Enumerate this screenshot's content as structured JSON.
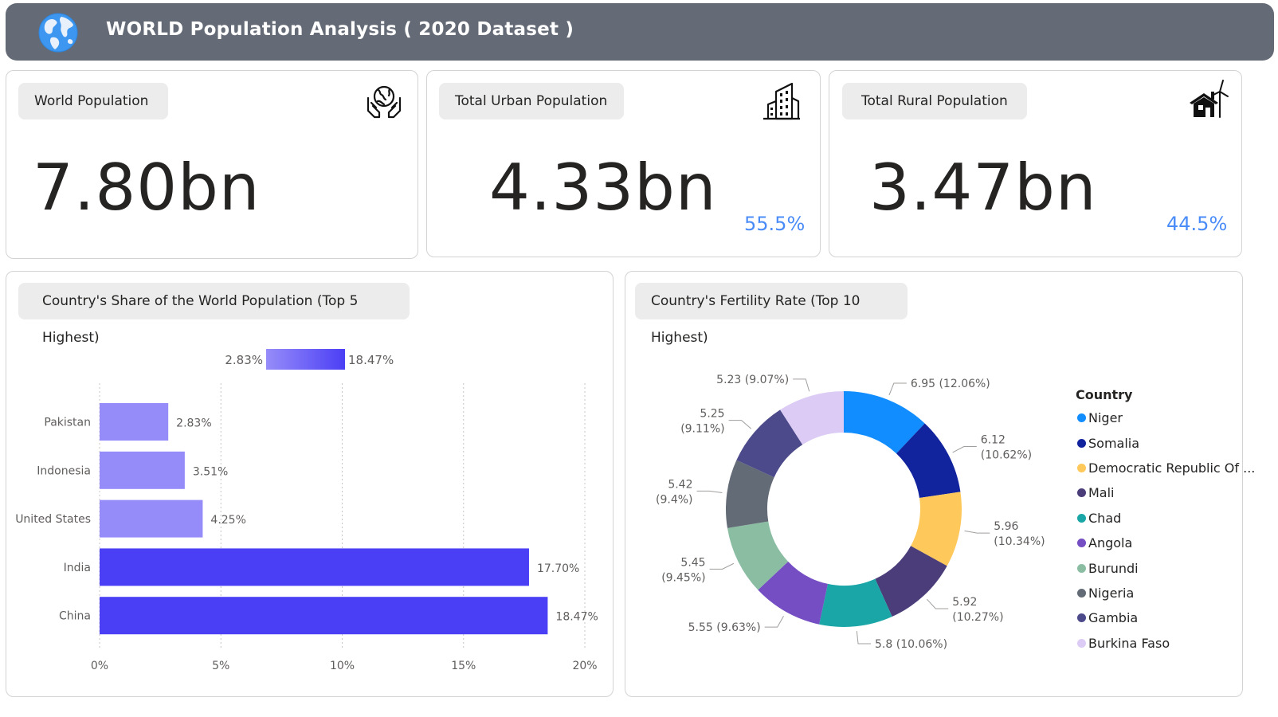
{
  "header": {
    "title": "WORLD Population Analysis ( 2020 Dataset )",
    "icon": "globe-icon"
  },
  "kpis": {
    "world": {
      "label": "World Population",
      "value": "7.80bn",
      "icon": "hands-globe-icon"
    },
    "urban": {
      "label": "Total Urban Population",
      "value": "4.33bn",
      "percent": "55.5%",
      "icon": "city-buildings-icon"
    },
    "rural": {
      "label": "Total Rural Population",
      "value": "3.47bn",
      "percent": "44.5%",
      "icon": "house-windmill-icon"
    }
  },
  "colors": {
    "accent": "#4a8cf7",
    "header_bg": "#656b76",
    "bar_dark": "#4b3ff5",
    "bar_light": "#968cf9"
  },
  "bar_panel": {
    "title": "Country's Share of the World Population (Top 5 Highest)"
  },
  "donut_panel": {
    "title": "Country's Fertility Rate (Top 10 Highest)"
  },
  "chart_data": [
    {
      "type": "bar",
      "orientation": "horizontal",
      "categories": [
        "Pakistan",
        "Indonesia",
        "United States",
        "India",
        "China"
      ],
      "values": [
        2.83,
        3.51,
        4.25,
        17.7,
        18.47
      ],
      "value_labels": [
        "2.83%",
        "3.51%",
        "4.25%",
        "17.70%",
        "18.47%"
      ],
      "xlim": [
        0,
        20
      ],
      "x_ticks": [
        "0%",
        "5%",
        "10%",
        "15%",
        "20%"
      ],
      "color_scale": {
        "min_label": "2.83%",
        "max_label": "18.47%"
      },
      "grid": true
    },
    {
      "type": "pie",
      "variant": "donut",
      "legend_title": "Country",
      "legend_position": "right",
      "slices": [
        {
          "name": "Niger",
          "value": 6.95,
          "label": "6.95 (12.06%)",
          "color": "#118dff"
        },
        {
          "name": "Somalia",
          "value": 6.12,
          "label": "6.12 (10.62%)",
          "color": "#12239e"
        },
        {
          "name": "Democratic Republic Of ...",
          "value": 5.96,
          "label": "5.96 (10.34%)",
          "color": "#ffc85a"
        },
        {
          "name": "Mali",
          "value": 5.92,
          "label": "5.92 (10.27%)",
          "color": "#4b3d7a"
        },
        {
          "name": "Chad",
          "value": 5.8,
          "label": "5.8 (10.06%)",
          "color": "#1aa6a6"
        },
        {
          "name": "Angola",
          "value": 5.55,
          "label": "5.55 (9.63%)",
          "color": "#744ec2"
        },
        {
          "name": "Burundi",
          "value": 5.45,
          "label": "5.45 (9.45%)",
          "color": "#8bbda3"
        },
        {
          "name": "Nigeria",
          "value": 5.42,
          "label": "5.42 (9.4%)",
          "color": "#636b76"
        },
        {
          "name": "Gambia",
          "value": 5.25,
          "label": "5.25 (9.11%)",
          "color": "#4c4a8b"
        },
        {
          "name": "Burkina Faso",
          "value": 5.23,
          "label": "5.23 (9.07%)",
          "color": "#dcccf5"
        }
      ]
    }
  ]
}
